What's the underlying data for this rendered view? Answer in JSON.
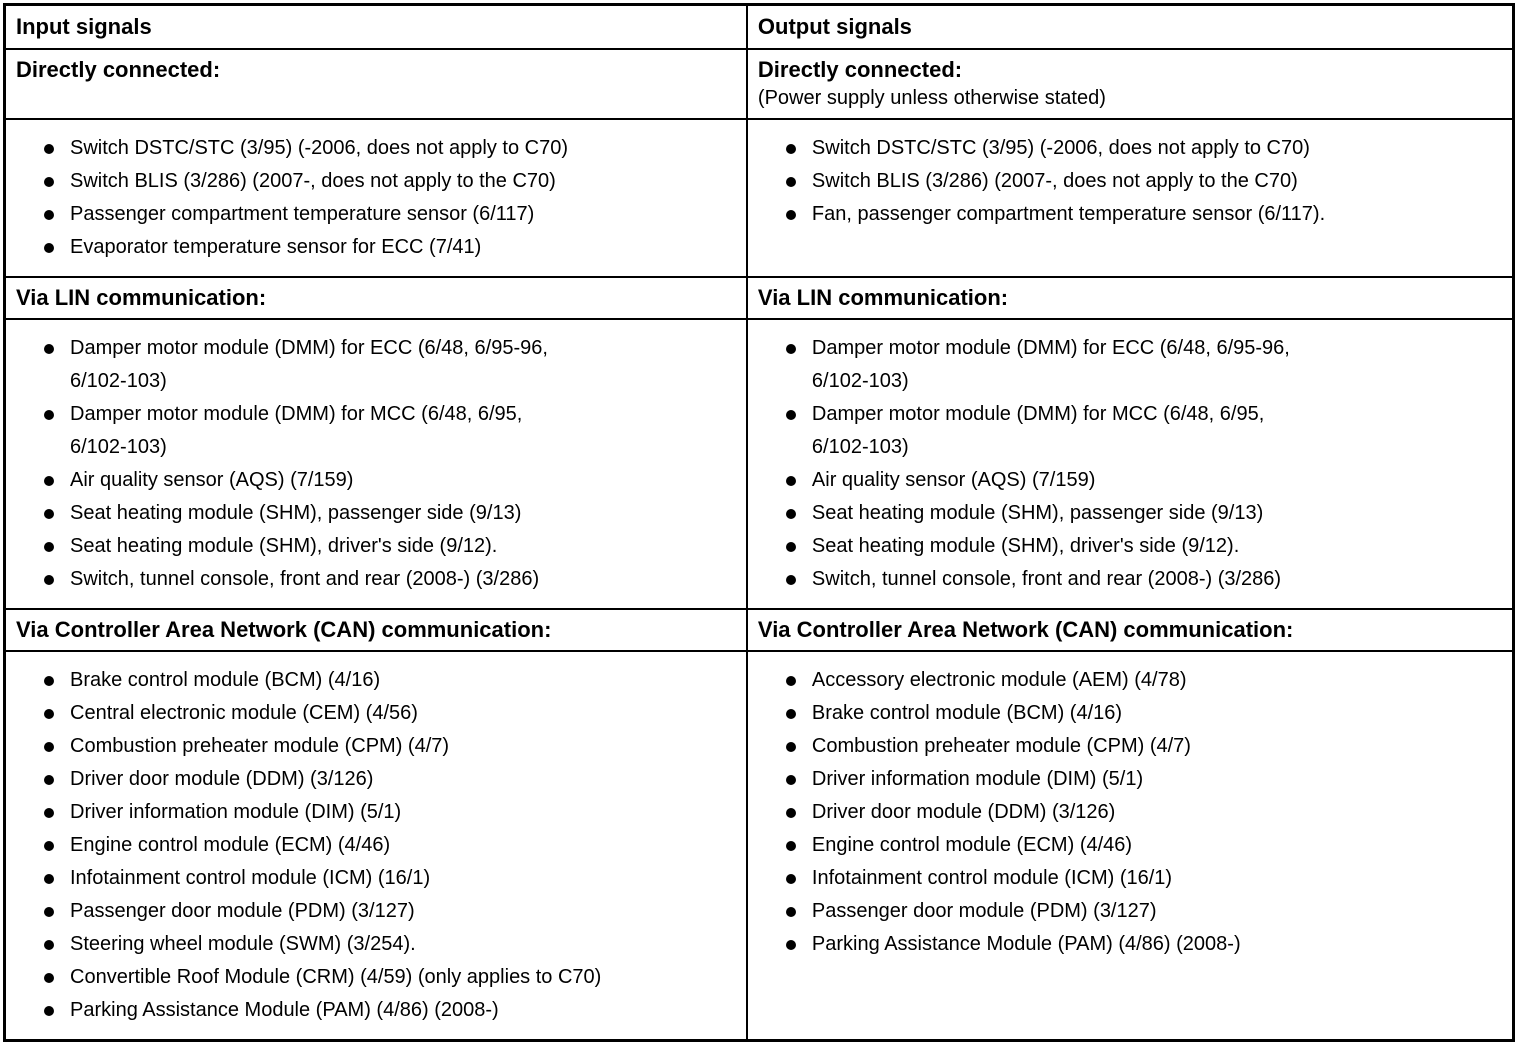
{
  "table": {
    "columns": [
      {
        "header": "Input signals",
        "sections": [
          {
            "heading": "Directly connected:",
            "items": [
              "Switch DSTC/STC (3/95) (-2006, does not apply to C70)",
              "Switch BLIS (3/286) (2007-, does not apply to the C70)",
              "Passenger compartment temperature sensor (6/117)",
              "Evaporator temperature sensor for ECC (7/41)"
            ]
          },
          {
            "heading": "Via LIN communication:",
            "items": [
              "Damper motor module (DMM) for ECC (6/48, 6/95-96,\n6/102-103)",
              "Damper motor module (DMM) for MCC (6/48, 6/95,\n6/102-103)",
              "Air quality sensor (AQS) (7/159)",
              "Seat heating module (SHM), passenger side (9/13)",
              "Seat heating module (SHM), driver's side (9/12).",
              "Switch, tunnel console, front and rear (2008-) (3/286)"
            ]
          },
          {
            "heading": "Via Controller Area Network (CAN) communication:",
            "items": [
              "Brake control module (BCM) (4/16)",
              "Central electronic module (CEM) (4/56)",
              "Combustion preheater module (CPM) (4/7)",
              "Driver door module (DDM) (3/126)",
              "Driver information module (DIM) (5/1)",
              "Engine control module (ECM) (4/46)",
              "Infotainment control module (ICM) (16/1)",
              "Passenger door module (PDM) (3/127)",
              "Steering wheel module (SWM) (3/254).",
              "Convertible Roof Module (CRM) (4/59) (only applies to C70)",
              "Parking Assistance Module (PAM) (4/86) (2008-)"
            ]
          }
        ]
      },
      {
        "header": "Output signals",
        "sections": [
          {
            "heading": "Directly connected:",
            "subtitle": "(Power supply unless otherwise stated)",
            "items": [
              "Switch DSTC/STC (3/95) (-2006, does not apply to C70)",
              "Switch BLIS (3/286) (2007-, does not apply to the C70)",
              "Fan, passenger compartment temperature sensor (6/117)."
            ]
          },
          {
            "heading": "Via LIN communication:",
            "items": [
              "Damper motor module (DMM) for ECC (6/48, 6/95-96,\n6/102-103)",
              "Damper motor module (DMM) for MCC (6/48, 6/95,\n6/102-103)",
              "Air quality sensor (AQS) (7/159)",
              "Seat heating module (SHM), passenger side (9/13)",
              "Seat heating module (SHM), driver's side (9/12).",
              "Switch, tunnel console, front and rear (2008-) (3/286)"
            ]
          },
          {
            "heading": "Via Controller Area Network (CAN) communication:",
            "items": [
              "Accessory electronic module (AEM) (4/78)",
              "Brake control module (BCM) (4/16)",
              "Combustion preheater module (CPM) (4/7)",
              "Driver information module (DIM) (5/1)",
              "Driver door module (DDM) (3/126)",
              "Engine control module (ECM) (4/46)",
              "Infotainment control module (ICM) (16/1)",
              "Passenger door module (PDM) (3/127)",
              "Parking Assistance Module (PAM) (4/86) (2008-)"
            ]
          }
        ]
      }
    ]
  }
}
